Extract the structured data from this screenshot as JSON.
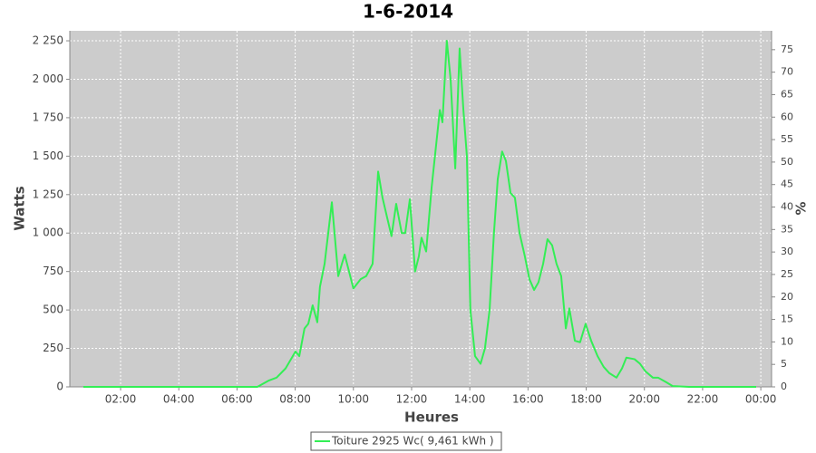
{
  "chart_data": {
    "type": "line",
    "title": "1-6-2014",
    "x_label": "Heures",
    "y_label": "Watts",
    "y2_label": "%",
    "xlim": [
      0.255,
      24.37
    ],
    "xticks": [
      {
        "value": 2,
        "label": "02:00"
      },
      {
        "value": 4,
        "label": "04:00"
      },
      {
        "value": 6,
        "label": "06:00"
      },
      {
        "value": 8,
        "label": "08:00"
      },
      {
        "value": 10,
        "label": "10:00"
      },
      {
        "value": 12,
        "label": "12:00"
      },
      {
        "value": 14,
        "label": "14:00"
      },
      {
        "value": 16,
        "label": "16:00"
      },
      {
        "value": 18,
        "label": "18:00"
      },
      {
        "value": 20,
        "label": "20:00"
      },
      {
        "value": 22,
        "label": "22:00"
      },
      {
        "value": 24,
        "label": "00:00"
      }
    ],
    "ylim": [
      0,
      2315
    ],
    "yticks": [
      0,
      250,
      500,
      750,
      {
        "value": 1000,
        "label": "1 000"
      },
      {
        "value": 1250,
        "label": "1 250"
      },
      {
        "value": 1500,
        "label": "1 500"
      },
      {
        "value": 1750,
        "label": "1 750"
      },
      {
        "value": 2000,
        "label": "2 000"
      },
      {
        "value": 2250,
        "label": "2 250"
      }
    ],
    "y2lim": [
      0,
      79.2
    ],
    "y2ticks": [
      0,
      5,
      10,
      15,
      20,
      25,
      30,
      35,
      40,
      45,
      50,
      55,
      60,
      65,
      70,
      75
    ],
    "grid": true,
    "legend": "bottom",
    "x": [
      0.72,
      6.7,
      7.08,
      7.36,
      7.67,
      8.01,
      8.14,
      8.32,
      8.45,
      8.6,
      8.76,
      8.85,
      9.01,
      9.26,
      9.48,
      9.7,
      10.0,
      10.25,
      10.44,
      10.66,
      10.85,
      11.0,
      11.16,
      11.31,
      11.47,
      11.66,
      11.78,
      11.94,
      12.12,
      12.25,
      12.34,
      12.5,
      12.69,
      12.97,
      13.06,
      13.21,
      13.34,
      13.5,
      13.65,
      13.78,
      13.9,
      14.02,
      14.18,
      14.37,
      14.52,
      14.68,
      14.83,
      14.96,
      15.11,
      15.24,
      15.4,
      15.55,
      15.71,
      15.89,
      16.05,
      16.21,
      16.36,
      16.52,
      16.67,
      16.83,
      16.98,
      17.14,
      17.3,
      17.42,
      17.61,
      17.79,
      17.98,
      18.17,
      18.39,
      18.6,
      18.79,
      19.04,
      19.23,
      19.38,
      19.66,
      19.85,
      20.04,
      20.29,
      20.47,
      20.75,
      20.97,
      21.53,
      23.84
    ],
    "series": [
      {
        "name": "Toiture 2925 Wc( 9,461 kWh )",
        "color": "#33ee55",
        "values": [
          0,
          0,
          40,
          60,
          120,
          230,
          200,
          380,
          410,
          530,
          420,
          650,
          800,
          1200,
          720,
          860,
          640,
          700,
          720,
          800,
          1400,
          1230,
          1100,
          980,
          1190,
          1000,
          1000,
          1220,
          750,
          850,
          970,
          880,
          1300,
          1800,
          1720,
          2250,
          2000,
          1420,
          2200,
          1800,
          1500,
          500,
          200,
          150,
          250,
          500,
          1000,
          1350,
          1530,
          1470,
          1260,
          1230,
          1000,
          850,
          700,
          630,
          680,
          800,
          960,
          920,
          800,
          720,
          380,
          510,
          300,
          290,
          410,
          300,
          200,
          130,
          90,
          60,
          120,
          190,
          180,
          150,
          100,
          60,
          60,
          30,
          5,
          0,
          0
        ]
      }
    ]
  }
}
